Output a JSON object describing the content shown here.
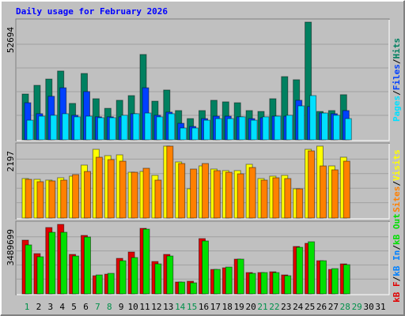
{
  "chart_data": {
    "type": "bar",
    "title": "Daily usage for February 2026",
    "categories": [
      "1",
      "2",
      "3",
      "4",
      "5",
      "6",
      "7",
      "8",
      "9",
      "10",
      "11",
      "12",
      "13",
      "14",
      "15",
      "16",
      "17",
      "18",
      "19",
      "20",
      "21",
      "22",
      "23",
      "24",
      "25",
      "26",
      "27",
      "28",
      "29",
      "30",
      "31"
    ],
    "category_colors": [
      "#00904a",
      "#000000",
      "#000000",
      "#000000",
      "#000000",
      "#000000",
      "#00904a",
      "#00904a",
      "#000000",
      "#000000",
      "#000000",
      "#000000",
      "#000000",
      "#00904a",
      "#00904a",
      "#000000",
      "#000000",
      "#000000",
      "#000000",
      "#000000",
      "#00904a",
      "#00904a",
      "#000000",
      "#000000",
      "#000000",
      "#000000",
      "#000000",
      "#00904a",
      "#00904a",
      "#000000",
      "#000000"
    ],
    "legend_separator": "/",
    "panels": [
      {
        "ylim": [
          0,
          52694
        ],
        "yticks": [
          52694
        ],
        "series": [
          {
            "name": "Pages",
            "color": "#00e0ff",
            "values": [
              8800,
              10600,
              11000,
              11700,
              10300,
              10600,
              9900,
              9900,
              11000,
              11700,
              12000,
              10300,
              11700,
              5300,
              5300,
              8800,
              9500,
              9500,
              10300,
              8800,
              10300,
              10600,
              11000,
              15200,
              19800,
              12000,
              11000,
              9500,
              null,
              null,
              null
            ]
          },
          {
            "name": "Files",
            "color": "#0040ff",
            "values": [
              16600,
              11700,
              19500,
              23300,
              11000,
              21600,
              10300,
              10300,
              10300,
              11700,
              23300,
              11000,
              12400,
              7400,
              6000,
              9500,
              10600,
              10600,
              10300,
              9500,
              9900,
              10600,
              10600,
              17700,
              14900,
              12000,
              11700,
              13100,
              null,
              null,
              null
            ]
          },
          {
            "name": "Hits",
            "color": "#008060",
            "values": [
              20500,
              24400,
              27200,
              30800,
              16300,
              29700,
              18400,
              14100,
              17700,
              19800,
              38200,
              17300,
              22300,
              13100,
              9500,
              13100,
              17700,
              17000,
              16600,
              13100,
              12700,
              18400,
              28300,
              26900,
              52694,
              12700,
              13100,
              20200,
              null,
              null,
              null
            ]
          }
        ]
      },
      {
        "ylim": [
          0,
          2197
        ],
        "yticks": [
          2197
        ],
        "series": [
          {
            "name": "Sites",
            "color": "#ff8000",
            "values": [
              1183,
              1111,
              1135,
              1159,
              1328,
              1424,
              1859,
              1787,
              1738,
              1400,
              1521,
              1159,
              2197,
              1666,
              1497,
              1666,
              1449,
              1400,
              1352,
              1545,
              1159,
              1231,
              1207,
              893,
              2052,
              1593,
              1473,
              1738,
              null,
              null,
              null
            ]
          },
          {
            "name": "Visits",
            "color": "#ffff00",
            "values": [
              1207,
              1183,
              1159,
              1231,
              1280,
              1618,
              2100,
              1907,
              1931,
              1400,
              1424,
              1304,
              2197,
              1714,
              893,
              1593,
              1497,
              1449,
              1449,
              1642,
              1207,
              1280,
              1304,
              893,
              2100,
              2197,
              1593,
              1859,
              null,
              null,
              null
            ]
          }
        ]
      },
      {
        "ylim": [
          0,
          3489699
        ],
        "yticks": [
          3489699
        ],
        "series": [
          {
            "name": "kB F",
            "color": "#e00000",
            "values": [
              2697000,
              2022000,
              3331000,
              3489699,
              1983000,
              2935000,
              912000,
              991000,
              1784000,
              2102000,
              3291000,
              1626000,
              1983000,
              595000,
              635000,
              2776000,
              1229000,
              1309000,
              1745000,
              1071000,
              1071000,
              1110000,
              952000,
              2380000,
              2538000,
              1665000,
              1229000,
              1507000,
              null,
              null,
              null
            ]
          },
          {
            "name": "kB In",
            "color": "#0080ff",
            "values": [
              null,
              null,
              null,
              null,
              null,
              null,
              null,
              null,
              null,
              null,
              null,
              null,
              null,
              null,
              null,
              null,
              null,
              null,
              null,
              null,
              null,
              null,
              null,
              null,
              null,
              null,
              null,
              null,
              null,
              null,
              null
            ]
          },
          {
            "name": "kB Out",
            "color": "#00e000",
            "values": [
              2459000,
              1864000,
              3093000,
              3093000,
              1903000,
              2855000,
              952000,
              1031000,
              1665000,
              1824000,
              3251000,
              1507000,
              1903000,
              595000,
              555000,
              2657000,
              1229000,
              1348000,
              1745000,
              1031000,
              1071000,
              1071000,
              912000,
              2340000,
              2617000,
              1665000,
              1269000,
              1467000,
              null,
              null,
              null
            ]
          }
        ]
      }
    ]
  }
}
